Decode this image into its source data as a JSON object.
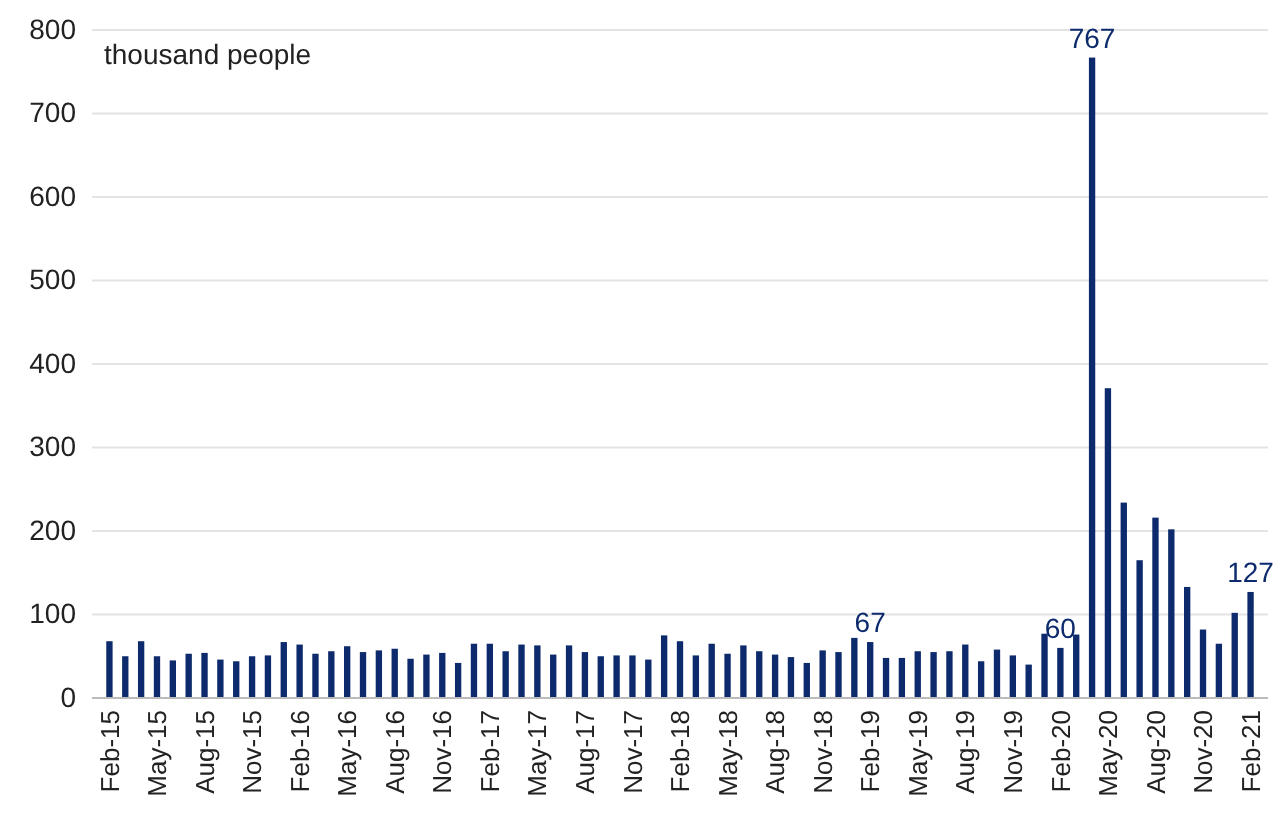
{
  "chart_data": {
    "type": "bar",
    "ylabel": "thousand people",
    "categories": [
      "Feb-15",
      null,
      null,
      "May-15",
      null,
      null,
      "Aug-15",
      null,
      null,
      "Nov-15",
      null,
      null,
      "Feb-16",
      null,
      null,
      "May-16",
      null,
      null,
      "Aug-16",
      null,
      null,
      "Nov-16",
      null,
      null,
      "Feb-17",
      null,
      null,
      "May-17",
      null,
      null,
      "Aug-17",
      null,
      null,
      "Nov-17",
      null,
      null,
      "Feb-18",
      null,
      null,
      "May-18",
      null,
      null,
      "Aug-18",
      null,
      null,
      "Nov-18",
      null,
      null,
      "Feb-19",
      null,
      null,
      "May-19",
      null,
      null,
      "Aug-19",
      null,
      null,
      "Nov-19",
      null,
      null,
      "Feb-20",
      null,
      null,
      "May-20",
      null,
      null,
      "Aug-20",
      null,
      null,
      "Nov-20",
      null,
      null,
      "Feb-21"
    ],
    "values": [
      68,
      50,
      68,
      50,
      45,
      53,
      54,
      46,
      44,
      50,
      51,
      67,
      64,
      53,
      56,
      62,
      55,
      57,
      59,
      47,
      52,
      54,
      42,
      65,
      65,
      56,
      64,
      63,
      52,
      63,
      55,
      50,
      51,
      51,
      46,
      75,
      68,
      51,
      65,
      53,
      63,
      56,
      52,
      49,
      42,
      57,
      55,
      72,
      67,
      48,
      48,
      56,
      55,
      56,
      64,
      44,
      58,
      51,
      40,
      77,
      60,
      76,
      767,
      371,
      234,
      165,
      216,
      202,
      133,
      82,
      65,
      102,
      127
    ],
    "value_labels": [
      null,
      null,
      null,
      null,
      null,
      null,
      null,
      null,
      null,
      null,
      null,
      null,
      null,
      null,
      null,
      null,
      null,
      null,
      null,
      null,
      null,
      null,
      null,
      null,
      null,
      null,
      null,
      null,
      null,
      null,
      null,
      null,
      null,
      null,
      null,
      null,
      null,
      null,
      null,
      null,
      null,
      null,
      null,
      null,
      null,
      null,
      null,
      null,
      "67",
      null,
      null,
      null,
      null,
      null,
      null,
      null,
      null,
      null,
      null,
      null,
      "60",
      null,
      "767",
      null,
      null,
      null,
      null,
      null,
      null,
      null,
      null,
      null,
      "127"
    ],
    "color": "#0c2a6c",
    "ylim": [
      0,
      800
    ],
    "yticks": [
      0,
      100,
      200,
      300,
      400,
      500,
      600,
      700,
      800
    ],
    "grid": "y"
  }
}
